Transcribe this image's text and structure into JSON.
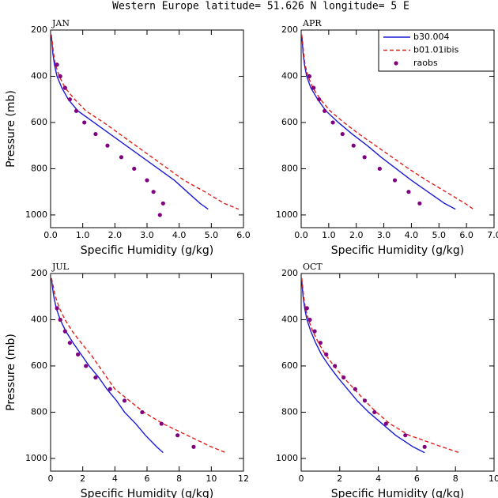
{
  "title": "Western Europe  latitude= 51.626 N longitude= 5 E",
  "chart_data": [
    {
      "type": "line",
      "title": "JAN",
      "xlabel": "Specific Humidity (g/kg)",
      "ylabel": "Pressure (mb)",
      "xlim": [
        0,
        6
      ],
      "xticks": [
        {
          "value": 0,
          "label": "0.0"
        },
        {
          "value": 1,
          "label": "1.0"
        },
        {
          "value": 2,
          "label": "2.0"
        },
        {
          "value": 3,
          "label": "3.0"
        },
        {
          "value": 4,
          "label": "4.0"
        },
        {
          "value": 5,
          "label": "5.0"
        },
        {
          "value": 6,
          "label": "6.0"
        }
      ],
      "ylim": [
        200,
        1055
      ],
      "y_inverted": true,
      "yticks": [
        200,
        400,
        600,
        800,
        1000
      ],
      "series": [
        {
          "name": "b30.004",
          "color": "#1a1ad6",
          "style": "line",
          "dashed": false,
          "x": [
            0.02,
            0.04,
            0.07,
            0.12,
            0.2,
            0.35,
            0.55,
            0.85,
            1.35,
            1.85,
            2.35,
            2.85,
            3.35,
            3.85,
            4.25,
            4.65,
            4.9
          ],
          "y": [
            220,
            250,
            300,
            350,
            400,
            450,
            500,
            550,
            600,
            650,
            700,
            750,
            800,
            850,
            900,
            950,
            975
          ]
        },
        {
          "name": "b01.01ibis",
          "color": "#e0201b",
          "style": "line",
          "dashed": true,
          "x": [
            0.02,
            0.05,
            0.09,
            0.15,
            0.27,
            0.45,
            0.75,
            1.1,
            1.65,
            2.15,
            2.65,
            3.15,
            3.65,
            4.15,
            4.8,
            5.4,
            5.85
          ],
          "y": [
            220,
            250,
            300,
            350,
            400,
            450,
            500,
            550,
            600,
            650,
            700,
            750,
            800,
            850,
            900,
            950,
            975
          ]
        },
        {
          "name": "raobs",
          "color": "#800080",
          "style": "marker",
          "x": [
            0.2,
            0.3,
            0.45,
            0.6,
            0.8,
            1.05,
            1.4,
            1.77,
            2.2,
            2.6,
            3.0,
            3.2,
            3.5,
            3.4
          ],
          "y": [
            350,
            400,
            450,
            500,
            550,
            600,
            650,
            700,
            750,
            800,
            850,
            900,
            950,
            1000
          ]
        }
      ]
    },
    {
      "type": "line",
      "title": "APR",
      "xlabel": "Specific Humidity (g/kg)",
      "legend": "upper right",
      "xlim": [
        0,
        7
      ],
      "xticks": [
        {
          "value": 0,
          "label": "0.0"
        },
        {
          "value": 1,
          "label": "1.0"
        },
        {
          "value": 2,
          "label": "2.0"
        },
        {
          "value": 3,
          "label": "3.0"
        },
        {
          "value": 4,
          "label": "4.0"
        },
        {
          "value": 5,
          "label": "5.0"
        },
        {
          "value": 6,
          "label": "6.0"
        },
        {
          "value": 7,
          "label": "7.0"
        }
      ],
      "ylim": [
        200,
        1055
      ],
      "y_inverted": true,
      "yticks": [
        200,
        400,
        600,
        800,
        1000
      ],
      "series": [
        {
          "name": "b30.004",
          "color": "#1a1ad6",
          "style": "line",
          "dashed": false,
          "x": [
            0.02,
            0.04,
            0.07,
            0.12,
            0.2,
            0.35,
            0.6,
            0.9,
            1.35,
            1.85,
            2.4,
            2.9,
            3.45,
            4.0,
            4.6,
            5.2,
            5.6
          ],
          "y": [
            220,
            250,
            300,
            350,
            400,
            450,
            500,
            550,
            600,
            650,
            700,
            750,
            800,
            850,
            900,
            950,
            975
          ]
        },
        {
          "name": "b01.01ibis",
          "color": "#e0201b",
          "style": "line",
          "dashed": true,
          "x": [
            0.02,
            0.05,
            0.09,
            0.14,
            0.25,
            0.42,
            0.7,
            1.05,
            1.55,
            2.1,
            2.7,
            3.3,
            3.9,
            4.55,
            5.25,
            5.95,
            6.25
          ],
          "y": [
            220,
            250,
            300,
            350,
            400,
            450,
            500,
            550,
            600,
            650,
            700,
            750,
            800,
            850,
            900,
            950,
            975
          ]
        },
        {
          "name": "raobs",
          "color": "#800080",
          "style": "marker",
          "x": [
            0.3,
            0.45,
            0.65,
            0.85,
            1.15,
            1.5,
            1.9,
            2.3,
            2.85,
            3.4,
            3.9,
            4.3
          ],
          "y": [
            400,
            450,
            500,
            550,
            600,
            650,
            700,
            750,
            800,
            850,
            900,
            950
          ]
        }
      ]
    },
    {
      "type": "line",
      "title": "JUL",
      "xlabel": "Specific Humidity (g/kg)",
      "ylabel": "Pressure (mb)",
      "xlim": [
        0,
        12
      ],
      "xticks": [
        0,
        2,
        4,
        6,
        8,
        10,
        12
      ],
      "ylim": [
        200,
        1055
      ],
      "y_inverted": true,
      "yticks": [
        200,
        400,
        600,
        800,
        1000
      ],
      "series": [
        {
          "name": "b30.004",
          "color": "#1a1ad6",
          "style": "line",
          "dashed": false,
          "x": [
            0.05,
            0.1,
            0.2,
            0.35,
            0.6,
            0.95,
            1.4,
            1.9,
            2.4,
            3.0,
            3.5,
            4.1,
            4.6,
            5.3,
            5.9,
            6.6,
            7.0
          ],
          "y": [
            220,
            250,
            300,
            350,
            400,
            450,
            500,
            550,
            600,
            650,
            700,
            750,
            800,
            850,
            900,
            950,
            975
          ]
        },
        {
          "name": "b01.01ibis",
          "color": "#e0201b",
          "style": "line",
          "dashed": true,
          "x": [
            0.05,
            0.15,
            0.3,
            0.55,
            0.9,
            1.35,
            1.9,
            2.5,
            3.0,
            3.5,
            4.0,
            4.9,
            5.8,
            7.0,
            8.5,
            10.0,
            10.9
          ],
          "y": [
            220,
            250,
            300,
            350,
            400,
            450,
            500,
            550,
            600,
            650,
            700,
            750,
            800,
            850,
            900,
            950,
            975
          ]
        },
        {
          "name": "raobs",
          "color": "#800080",
          "style": "marker",
          "x": [
            0.4,
            0.6,
            0.9,
            1.2,
            1.7,
            2.2,
            2.8,
            3.7,
            4.6,
            5.7,
            6.9,
            7.9,
            8.9
          ],
          "y": [
            350,
            400,
            450,
            500,
            550,
            600,
            650,
            700,
            750,
            800,
            850,
            900,
            950
          ]
        }
      ]
    },
    {
      "type": "line",
      "title": "OCT",
      "xlabel": "Specific Humidity (g/kg)",
      "xlim": [
        0,
        10
      ],
      "xticks": [
        0,
        2,
        4,
        6,
        8,
        10
      ],
      "ylim": [
        200,
        1055
      ],
      "y_inverted": true,
      "yticks": [
        200,
        400,
        600,
        800,
        1000
      ],
      "series": [
        {
          "name": "b30.004",
          "color": "#1a1ad6",
          "style": "line",
          "dashed": false,
          "x": [
            0.02,
            0.05,
            0.1,
            0.18,
            0.3,
            0.5,
            0.75,
            1.05,
            1.45,
            1.9,
            2.4,
            2.9,
            3.5,
            4.2,
            4.9,
            5.8,
            6.4
          ],
          "y": [
            220,
            250,
            300,
            350,
            400,
            450,
            500,
            550,
            600,
            650,
            700,
            750,
            800,
            850,
            900,
            950,
            975
          ]
        },
        {
          "name": "b01.01ibis",
          "color": "#e0201b",
          "style": "line",
          "dashed": true,
          "x": [
            0.03,
            0.07,
            0.13,
            0.22,
            0.38,
            0.6,
            0.9,
            1.25,
            1.7,
            2.2,
            2.75,
            3.3,
            3.9,
            4.6,
            5.6,
            7.3,
            8.2
          ],
          "y": [
            220,
            250,
            300,
            350,
            400,
            450,
            500,
            550,
            600,
            650,
            700,
            750,
            800,
            850,
            900,
            950,
            975
          ]
        },
        {
          "name": "raobs",
          "color": "#800080",
          "style": "marker",
          "x": [
            0.3,
            0.45,
            0.7,
            1.0,
            1.3,
            1.75,
            2.2,
            2.8,
            3.3,
            3.8,
            4.4,
            5.4,
            6.4
          ],
          "y": [
            350,
            400,
            450,
            500,
            550,
            600,
            650,
            700,
            750,
            800,
            850,
            900,
            950
          ]
        }
      ]
    }
  ]
}
